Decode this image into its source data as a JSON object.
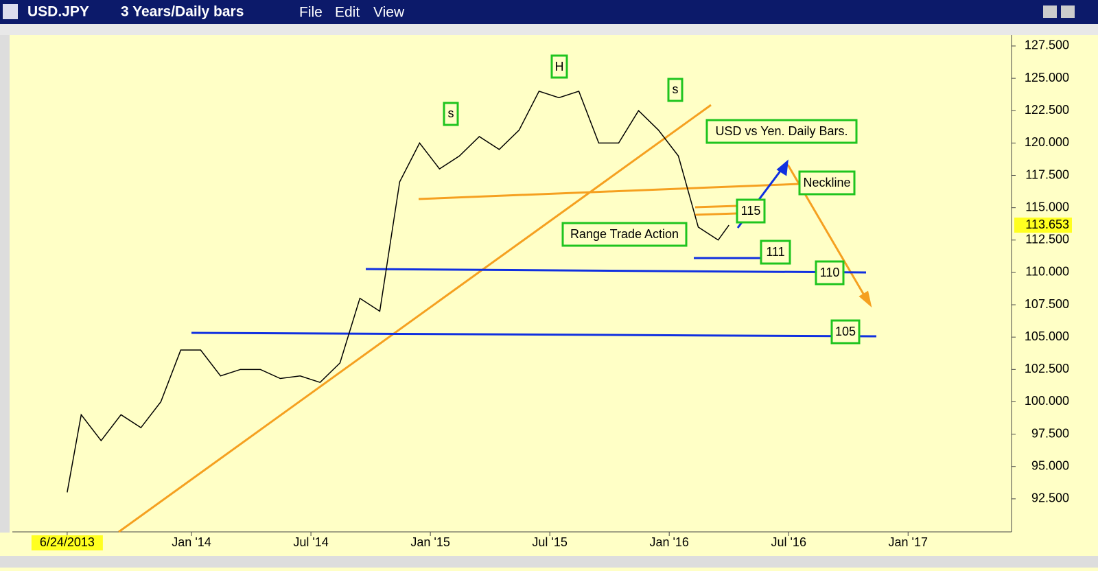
{
  "window": {
    "symbol": "USD.JPY",
    "period": "3 Years/Daily bars",
    "menu": [
      "File",
      "Edit",
      "View"
    ]
  },
  "chart_data": {
    "type": "line",
    "x": [
      "2013-06-24",
      "2013-07",
      "2013-08",
      "2013-09",
      "2013-10",
      "2013-11",
      "2013-12",
      "2014-01",
      "2014-02",
      "2014-03",
      "2014-04",
      "2014-05",
      "2014-06",
      "2014-07",
      "2014-08",
      "2014-09",
      "2014-10",
      "2014-11",
      "2014-12",
      "2015-01",
      "2015-02",
      "2015-03",
      "2015-04",
      "2015-05",
      "2015-06",
      "2015-07",
      "2015-08",
      "2015-09",
      "2015-10",
      "2015-11",
      "2015-12",
      "2016-01",
      "2016-02",
      "2016-03",
      "2016-04-01"
    ],
    "series": [
      {
        "name": "USD.JPY",
        "color": "#000000",
        "values": [
          93,
          99,
          97,
          99,
          98,
          100,
          104,
          104,
          102,
          102.5,
          102.5,
          101.8,
          102,
          101.5,
          103,
          108,
          107,
          117,
          120,
          118,
          119,
          120.5,
          119.5,
          121,
          124,
          123.5,
          124,
          120,
          120,
          122.5,
          121,
          119,
          113.5,
          112.5,
          113.653
        ]
      }
    ],
    "xlim": [
      "2013-04-01",
      "2017-06-07"
    ],
    "xticks": [
      {
        "value": "2013-06-24",
        "label": "6/24/2013"
      },
      {
        "value": "2014-01-01",
        "label": "Jan '14"
      },
      {
        "value": "2014-07-01",
        "label": "Jul '14"
      },
      {
        "value": "2015-01-01",
        "label": "Jan '15"
      },
      {
        "value": "2015-07-01",
        "label": "Jul '15"
      },
      {
        "value": "2016-01-01",
        "label": "Jan '16"
      },
      {
        "value": "2016-07-01",
        "label": "Jul '16"
      },
      {
        "value": "2017-01-01",
        "label": "Jan '17"
      }
    ],
    "ylim": [
      90,
      129
    ],
    "yticks": [
      {
        "value": 92.5,
        "label": "92.500"
      },
      {
        "value": 95,
        "label": "95.000"
      },
      {
        "value": 97.5,
        "label": "97.500"
      },
      {
        "value": 100,
        "label": "100.000"
      },
      {
        "value": 102.5,
        "label": "102.500"
      },
      {
        "value": 105,
        "label": "105.000"
      },
      {
        "value": 107.5,
        "label": "107.500"
      },
      {
        "value": 110,
        "label": "110.000"
      },
      {
        "value": 112.5,
        "label": "112.500"
      },
      {
        "value": 115,
        "label": "115.000"
      },
      {
        "value": 117.5,
        "label": "117.500"
      },
      {
        "value": 120,
        "label": "120.000"
      },
      {
        "value": 122.5,
        "label": "122.500"
      },
      {
        "value": 125,
        "label": "125.000"
      },
      {
        "value": 127.5,
        "label": "127.500"
      }
    ],
    "grid": false,
    "annotations": [
      "H",
      "s",
      "s",
      "USD vs Yen. Daily Bars.",
      "Neckline",
      "115",
      "Range Trade Action",
      "111",
      "110",
      "105"
    ]
  }
}
